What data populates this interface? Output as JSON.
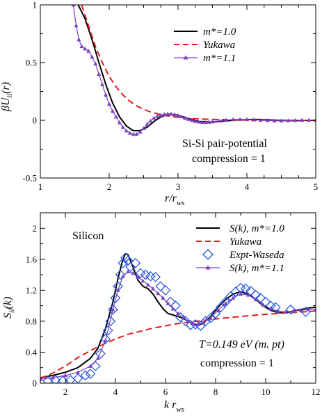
{
  "colors": {
    "black": "#000000",
    "red": "#e41a1c",
    "purple": "#7b3fbf",
    "blue": "#1f4fe0"
  },
  "chart_data": [
    {
      "type": "line",
      "xlabel_main": "r/r",
      "xlabel_sub": "ws",
      "ylabel_main": "βU",
      "ylabel_sub": "ii",
      "ylabel_tail": "(r)",
      "xlim": [
        1,
        5
      ],
      "ylim": [
        -0.5,
        1
      ],
      "xticks": [
        1,
        2,
        3,
        4,
        5
      ],
      "yticks": [
        -0.5,
        0,
        0.5,
        1
      ],
      "xtick_labels": [
        "1",
        "2",
        "3",
        "4",
        "5"
      ],
      "ytick_labels": [
        "-0.5",
        "0",
        "0.5",
        "1"
      ],
      "legend_position": "top-right",
      "annotations": [
        "Si-Si pair-potential",
        "compression = 1"
      ],
      "series": [
        {
          "name": "m*=1.0",
          "color": "#000000",
          "style": "solid",
          "marker": "none",
          "x": [
            1.55,
            1.65,
            1.75,
            1.85,
            1.95,
            2.05,
            2.15,
            2.25,
            2.35,
            2.45,
            2.55,
            2.65,
            2.75,
            2.85,
            2.95,
            3.05,
            3.15,
            3.3,
            3.5,
            3.7,
            3.9,
            4.1,
            4.3,
            4.5,
            4.7,
            4.9,
            5.0
          ],
          "y": [
            1.0,
            0.88,
            0.7,
            0.5,
            0.31,
            0.15,
            0.03,
            -0.05,
            -0.09,
            -0.09,
            -0.06,
            -0.01,
            0.03,
            0.05,
            0.05,
            0.035,
            0.015,
            -0.01,
            -0.015,
            -0.005,
            0.005,
            0.008,
            0.004,
            -0.002,
            -0.003,
            0.0,
            0.0
          ]
        },
        {
          "name": "Yukawa",
          "color": "#e41a1c",
          "style": "dashed",
          "marker": "none",
          "x": [
            1.6,
            1.7,
            1.8,
            1.9,
            2.0,
            2.1,
            2.2,
            2.3,
            2.4,
            2.5,
            2.6,
            2.8,
            3.0,
            3.2,
            3.5,
            4.0,
            4.5,
            5.0
          ],
          "y": [
            1.0,
            0.82,
            0.64,
            0.5,
            0.38,
            0.29,
            0.22,
            0.165,
            0.125,
            0.095,
            0.072,
            0.042,
            0.025,
            0.015,
            0.007,
            0.002,
            0.0005,
            0.0
          ]
        },
        {
          "name": "m*=1.1",
          "color": "#7b3fbf",
          "style": "solid",
          "marker": "triangle",
          "x": [
            1.48,
            1.52,
            1.56,
            1.6,
            1.65,
            1.7,
            1.75,
            1.8,
            1.85,
            1.9,
            1.95,
            2.0,
            2.05,
            2.1,
            2.15,
            2.2,
            2.25,
            2.3,
            2.35,
            2.4,
            2.45,
            2.5,
            2.55,
            2.6,
            2.65,
            2.7,
            2.75,
            2.8,
            2.85,
            2.9,
            2.95,
            3.0,
            3.05,
            3.1,
            3.15,
            3.2,
            3.25,
            3.3,
            3.35,
            3.4,
            3.45,
            3.5,
            3.6,
            3.7,
            3.8,
            3.9,
            4.0,
            4.1,
            4.2,
            4.3,
            4.4,
            4.5,
            4.6,
            4.7,
            4.8,
            4.9,
            5.0
          ],
          "y": [
            1.0,
            0.82,
            0.7,
            0.64,
            0.62,
            0.6,
            0.55,
            0.49,
            0.4,
            0.31,
            0.22,
            0.14,
            0.08,
            0.03,
            -0.02,
            -0.06,
            -0.09,
            -0.11,
            -0.12,
            -0.12,
            -0.1,
            -0.07,
            -0.035,
            -0.005,
            0.02,
            0.035,
            0.045,
            0.052,
            0.055,
            0.055,
            0.05,
            0.042,
            0.032,
            0.02,
            0.01,
            0.0,
            -0.008,
            -0.013,
            -0.016,
            -0.017,
            -0.015,
            -0.012,
            -0.005,
            0.002,
            0.007,
            0.009,
            0.008,
            0.005,
            0.001,
            -0.002,
            -0.004,
            -0.004,
            -0.002,
            0.0,
            0.002,
            0.002,
            0.001
          ]
        }
      ]
    },
    {
      "type": "line",
      "xlabel_main": "k r",
      "xlabel_sub": "ws",
      "ylabel_main": "S",
      "ylabel_sub": "ii",
      "ylabel_tail": "(k)",
      "xlim": [
        1,
        12
      ],
      "ylim": [
        0,
        2.2
      ],
      "xticks": [
        2,
        4,
        6,
        8,
        10,
        12
      ],
      "yticks": [
        0,
        0.4,
        0.8,
        1.2,
        1.6,
        2
      ],
      "xtick_labels": [
        "2",
        "4",
        "6",
        "8",
        "10",
        "12"
      ],
      "ytick_labels": [
        "0",
        "0.4",
        "0.8",
        "1.2",
        "1.6",
        "2"
      ],
      "legend_position": "top-right",
      "annotations": [
        "Silicon",
        "T=0.149 eV  (m. pt)",
        "compression = 1"
      ],
      "series": [
        {
          "name": "S(k), m*=1.0",
          "color": "#000000",
          "style": "solid",
          "marker": "none",
          "x": [
            1.0,
            1.5,
            2.0,
            2.5,
            3.0,
            3.3,
            3.6,
            3.9,
            4.1,
            4.3,
            4.4,
            4.5,
            4.7,
            4.9,
            5.1,
            5.3,
            5.5,
            5.7,
            5.9,
            6.1,
            6.3,
            6.5,
            6.7,
            6.9,
            7.1,
            7.3,
            7.5,
            7.8,
            8.1,
            8.4,
            8.7,
            9.0,
            9.3,
            9.6,
            9.9,
            10.2,
            10.5,
            10.8,
            11.1,
            11.4,
            11.7,
            12.0
          ],
          "y": [
            0.07,
            0.1,
            0.14,
            0.2,
            0.32,
            0.45,
            0.7,
            1.05,
            1.35,
            1.6,
            1.67,
            1.66,
            1.5,
            1.33,
            1.25,
            1.22,
            1.15,
            1.05,
            0.96,
            0.9,
            0.88,
            0.86,
            0.84,
            0.8,
            0.76,
            0.75,
            0.77,
            0.86,
            0.98,
            1.08,
            1.15,
            1.18,
            1.15,
            1.08,
            1.0,
            0.94,
            0.91,
            0.91,
            0.93,
            0.95,
            0.97,
            0.98
          ]
        },
        {
          "name": "Yukawa",
          "color": "#e41a1c",
          "style": "dashed",
          "marker": "none",
          "x": [
            1.0,
            1.5,
            2.0,
            2.5,
            3.0,
            3.5,
            4.0,
            4.5,
            5.0,
            5.5,
            6.0,
            6.5,
            7.0,
            7.5,
            8.0,
            9.0,
            10.0,
            11.0,
            12.0
          ],
          "y": [
            0.06,
            0.13,
            0.22,
            0.33,
            0.42,
            0.5,
            0.57,
            0.63,
            0.67,
            0.71,
            0.74,
            0.77,
            0.79,
            0.81,
            0.83,
            0.86,
            0.89,
            0.91,
            0.93
          ]
        },
        {
          "name": "Expt-Waseda",
          "color": "#1f4fe0",
          "style": "none",
          "marker": "diamond",
          "x": [
            1.3,
            1.6,
            1.9,
            2.2,
            2.5,
            2.8,
            3.0,
            3.2,
            3.4,
            3.6,
            3.7,
            3.8,
            3.9,
            4.0,
            4.1,
            4.2,
            4.3,
            4.4,
            4.5,
            4.6,
            4.8,
            5.0,
            5.2,
            5.4,
            5.6,
            5.8,
            6.0,
            6.2,
            6.4,
            6.6,
            6.8,
            7.0,
            7.2,
            7.4,
            7.6,
            7.8,
            8.0,
            8.2,
            8.4,
            8.6,
            8.8,
            9.0,
            9.2,
            9.4,
            9.6,
            9.8,
            10.0,
            10.2,
            10.4,
            11.0,
            11.6
          ],
          "y": [
            0.03,
            0.04,
            0.03,
            0.04,
            0.06,
            0.1,
            0.12,
            0.22,
            0.38,
            0.57,
            0.68,
            0.8,
            0.95,
            1.1,
            1.25,
            1.4,
            1.55,
            1.62,
            1.58,
            1.5,
            1.55,
            1.42,
            1.4,
            1.38,
            1.37,
            1.25,
            1.2,
            1.05,
            1.0,
            0.85,
            0.8,
            0.75,
            0.76,
            0.74,
            0.8,
            0.84,
            0.9,
            0.98,
            1.05,
            1.12,
            1.18,
            1.23,
            1.22,
            1.19,
            1.14,
            1.1,
            1.05,
            1.0,
            0.98,
            0.95,
            0.92
          ]
        },
        {
          "name": "S(k), m*=1.1",
          "color": "#7b3fbf",
          "style": "solid",
          "marker": "triangle",
          "x": [
            1.0,
            1.5,
            2.0,
            2.5,
            3.0,
            3.3,
            3.6,
            3.9,
            4.1,
            4.3,
            4.5,
            4.7,
            4.9,
            5.1,
            5.3,
            5.5,
            5.7,
            5.9,
            6.1,
            6.3,
            6.5,
            6.7,
            6.9,
            7.1,
            7.3,
            7.5,
            7.8,
            8.1,
            8.4,
            8.7,
            9.0,
            9.3,
            9.6,
            9.9,
            10.2,
            10.5,
            10.8,
            11.1,
            11.4,
            11.7,
            12.0
          ],
          "y": [
            0.05,
            0.07,
            0.1,
            0.14,
            0.22,
            0.32,
            0.55,
            0.95,
            1.2,
            1.38,
            1.44,
            1.42,
            1.37,
            1.32,
            1.27,
            1.22,
            1.16,
            1.1,
            1.03,
            0.96,
            0.9,
            0.85,
            0.8,
            0.77,
            0.76,
            0.78,
            0.84,
            0.94,
            1.03,
            1.1,
            1.15,
            1.14,
            1.08,
            1.01,
            0.96,
            0.93,
            0.92,
            0.93,
            0.94,
            0.95,
            0.95
          ]
        }
      ]
    }
  ]
}
